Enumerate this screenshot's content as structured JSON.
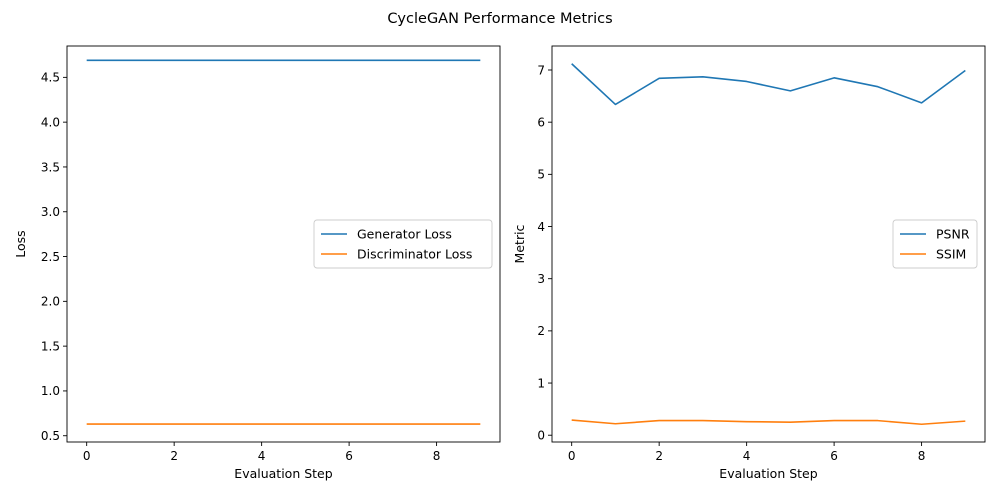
{
  "figure": {
    "title": "CycleGAN Performance Metrics"
  },
  "chart_data": [
    {
      "type": "line",
      "title": "",
      "xlabel": "Evaluation Step",
      "ylabel": "Loss",
      "x": [
        0,
        1,
        2,
        3,
        4,
        5,
        6,
        7,
        8,
        9
      ],
      "xlim": [
        -0.45,
        9.45
      ],
      "ylim": [
        0.43,
        4.85
      ],
      "xticks": [
        0,
        2,
        4,
        6,
        8
      ],
      "yticks": [
        0.5,
        1.0,
        1.5,
        2.0,
        2.5,
        3.0,
        3.5,
        4.0,
        4.5
      ],
      "ytick_labels": [
        "0.5",
        "1.0",
        "1.5",
        "2.0",
        "2.5",
        "3.0",
        "3.5",
        "4.0",
        "4.5"
      ],
      "grid": false,
      "legend": "center-right",
      "series": [
        {
          "name": "Generator Loss",
          "color": "#1f77b4",
          "values": [
            4.69,
            4.69,
            4.69,
            4.69,
            4.69,
            4.69,
            4.69,
            4.69,
            4.69,
            4.69
          ]
        },
        {
          "name": "Discriminator Loss",
          "color": "#ff7f0e",
          "values": [
            0.63,
            0.63,
            0.63,
            0.63,
            0.63,
            0.63,
            0.63,
            0.63,
            0.63,
            0.63
          ]
        }
      ]
    },
    {
      "type": "line",
      "title": "",
      "xlabel": "Evaluation Step",
      "ylabel": "Metric",
      "x": [
        0,
        1,
        2,
        3,
        4,
        5,
        6,
        7,
        8,
        9
      ],
      "xlim": [
        -0.45,
        9.45
      ],
      "ylim": [
        -0.13,
        7.46
      ],
      "xticks": [
        0,
        2,
        4,
        6,
        8
      ],
      "yticks": [
        0,
        1,
        2,
        3,
        4,
        5,
        6,
        7
      ],
      "ytick_labels": [
        "0",
        "1",
        "2",
        "3",
        "4",
        "5",
        "6",
        "7"
      ],
      "grid": false,
      "legend": "center-right",
      "series": [
        {
          "name": "PSNR",
          "color": "#1f77b4",
          "values": [
            7.12,
            6.34,
            6.84,
            6.87,
            6.78,
            6.6,
            6.85,
            6.68,
            6.37,
            6.99
          ]
        },
        {
          "name": "SSIM",
          "color": "#ff7f0e",
          "values": [
            0.29,
            0.22,
            0.28,
            0.28,
            0.26,
            0.25,
            0.28,
            0.28,
            0.21,
            0.27
          ]
        }
      ]
    }
  ]
}
